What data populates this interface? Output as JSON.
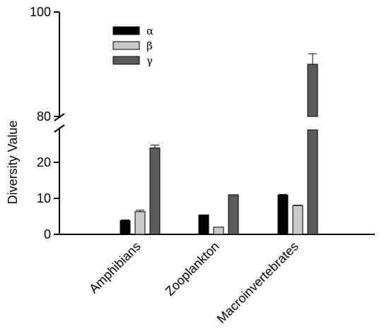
{
  "chart_data": {
    "type": "bar",
    "ylabel": "Diversity Value",
    "yaxis": {
      "broken": true,
      "lower_segment": {
        "range": [
          0,
          30
        ],
        "ticks": [
          "0",
          "10",
          "20"
        ]
      },
      "upper_segment": {
        "range": [
          80,
          100
        ],
        "ticks": [
          "80",
          "100"
        ]
      }
    },
    "categories": [
      "Amphibians",
      "Zooplankton",
      "Macroinvertebrates"
    ],
    "series": [
      {
        "name": "α",
        "color": "#000000",
        "values": [
          3.8,
          5.4,
          10.9
        ],
        "errors": [
          0.2,
          0,
          0.2
        ]
      },
      {
        "name": "β",
        "color": "#c8c8c8",
        "values": [
          6.3,
          2.0,
          8.0
        ],
        "errors": [
          0.4,
          0,
          0.1
        ]
      },
      {
        "name": "γ",
        "color": "#5a5a5a",
        "values": [
          24.0,
          11.0,
          90.0
        ],
        "errors": [
          0.8,
          0,
          2.0
        ]
      }
    ],
    "legend_position": "top-left"
  }
}
